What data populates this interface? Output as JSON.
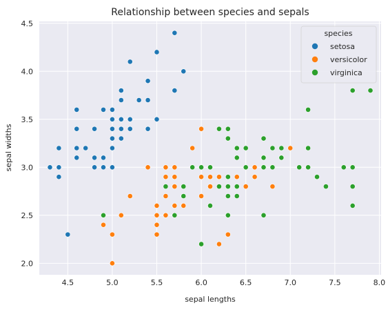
{
  "chart_data": {
    "type": "scatter",
    "title": "Relationship between species and sepals",
    "xlabel": "sepal lengths",
    "ylabel": "sepal widths",
    "xlim": [
      4.18,
      8.02
    ],
    "ylim": [
      1.88,
      4.52
    ],
    "xticks": [
      4.5,
      5.0,
      5.5,
      6.0,
      6.5,
      7.0,
      7.5,
      8.0
    ],
    "xtick_labels": [
      "4.5",
      "5.0",
      "5.5",
      "6.0",
      "6.5",
      "7.0",
      "7.5",
      "8.0"
    ],
    "yticks": [
      2.0,
      2.5,
      3.0,
      3.5,
      4.0,
      4.5
    ],
    "ytick_labels": [
      "2.0",
      "2.5",
      "3.0",
      "3.5",
      "4.0",
      "4.5"
    ],
    "grid": true,
    "legend": {
      "title": "species",
      "placement": "top-right"
    },
    "series": [
      {
        "name": "setosa",
        "color": "#1f77b4",
        "points": [
          [
            5.1,
            3.5
          ],
          [
            4.9,
            3.0
          ],
          [
            4.7,
            3.2
          ],
          [
            4.6,
            3.1
          ],
          [
            5.0,
            3.6
          ],
          [
            5.4,
            3.9
          ],
          [
            4.6,
            3.4
          ],
          [
            5.0,
            3.4
          ],
          [
            4.4,
            2.9
          ],
          [
            4.9,
            3.1
          ],
          [
            5.4,
            3.7
          ],
          [
            4.8,
            3.4
          ],
          [
            4.8,
            3.0
          ],
          [
            4.3,
            3.0
          ],
          [
            5.8,
            4.0
          ],
          [
            5.7,
            4.4
          ],
          [
            5.4,
            3.9
          ],
          [
            5.1,
            3.5
          ],
          [
            5.7,
            3.8
          ],
          [
            5.1,
            3.8
          ],
          [
            5.4,
            3.4
          ],
          [
            5.1,
            3.7
          ],
          [
            4.6,
            3.6
          ],
          [
            5.1,
            3.3
          ],
          [
            4.8,
            3.4
          ],
          [
            5.0,
            3.0
          ],
          [
            5.0,
            3.4
          ],
          [
            5.2,
            3.5
          ],
          [
            5.2,
            3.4
          ],
          [
            4.7,
            3.2
          ],
          [
            4.8,
            3.1
          ],
          [
            5.4,
            3.4
          ],
          [
            5.2,
            4.1
          ],
          [
            5.5,
            4.2
          ],
          [
            4.9,
            3.1
          ],
          [
            5.0,
            3.2
          ],
          [
            5.5,
            3.5
          ],
          [
            4.9,
            3.6
          ],
          [
            4.4,
            3.0
          ],
          [
            5.1,
            3.4
          ],
          [
            5.0,
            3.5
          ],
          [
            4.5,
            2.3
          ],
          [
            4.4,
            3.2
          ],
          [
            5.0,
            3.5
          ],
          [
            5.1,
            3.8
          ],
          [
            4.8,
            3.0
          ],
          [
            5.1,
            3.8
          ],
          [
            4.6,
            3.2
          ],
          [
            5.3,
            3.7
          ],
          [
            5.0,
            3.3
          ]
        ]
      },
      {
        "name": "versicolor",
        "color": "#ff7f0e",
        "points": [
          [
            7.0,
            3.2
          ],
          [
            6.4,
            3.2
          ],
          [
            6.9,
            3.1
          ],
          [
            5.5,
            2.3
          ],
          [
            6.5,
            2.8
          ],
          [
            5.7,
            2.8
          ],
          [
            6.3,
            3.3
          ],
          [
            4.9,
            2.4
          ],
          [
            6.6,
            2.9
          ],
          [
            5.2,
            2.7
          ],
          [
            5.0,
            2.0
          ],
          [
            5.9,
            3.0
          ],
          [
            6.0,
            2.2
          ],
          [
            6.1,
            2.9
          ],
          [
            5.6,
            2.9
          ],
          [
            6.7,
            3.1
          ],
          [
            5.6,
            3.0
          ],
          [
            5.8,
            2.7
          ],
          [
            6.2,
            2.2
          ],
          [
            5.6,
            2.5
          ],
          [
            5.9,
            3.2
          ],
          [
            6.1,
            2.8
          ],
          [
            6.3,
            2.5
          ],
          [
            6.1,
            2.8
          ],
          [
            6.4,
            2.9
          ],
          [
            6.6,
            3.0
          ],
          [
            6.8,
            2.8
          ],
          [
            6.7,
            3.0
          ],
          [
            6.0,
            2.9
          ],
          [
            5.7,
            2.6
          ],
          [
            5.5,
            2.4
          ],
          [
            5.5,
            2.4
          ],
          [
            5.8,
            2.7
          ],
          [
            6.0,
            2.7
          ],
          [
            5.4,
            3.0
          ],
          [
            6.0,
            3.4
          ],
          [
            6.7,
            3.1
          ],
          [
            6.3,
            2.3
          ],
          [
            5.6,
            3.0
          ],
          [
            5.5,
            2.5
          ],
          [
            5.5,
            2.6
          ],
          [
            6.1,
            3.0
          ],
          [
            5.8,
            2.6
          ],
          [
            5.0,
            2.3
          ],
          [
            5.6,
            2.7
          ],
          [
            5.7,
            3.0
          ],
          [
            5.7,
            2.9
          ],
          [
            6.2,
            2.9
          ],
          [
            5.1,
            2.5
          ],
          [
            5.7,
            2.8
          ]
        ]
      },
      {
        "name": "virginica",
        "color": "#2ca02c",
        "points": [
          [
            6.3,
            3.3
          ],
          [
            5.8,
            2.7
          ],
          [
            7.1,
            3.0
          ],
          [
            6.3,
            2.9
          ],
          [
            6.5,
            3.0
          ],
          [
            7.6,
            3.0
          ],
          [
            4.9,
            2.5
          ],
          [
            7.3,
            2.9
          ],
          [
            6.7,
            2.5
          ],
          [
            7.2,
            3.6
          ],
          [
            6.5,
            3.2
          ],
          [
            6.4,
            2.7
          ],
          [
            6.8,
            3.0
          ],
          [
            5.7,
            2.5
          ],
          [
            5.8,
            2.8
          ],
          [
            6.4,
            3.2
          ],
          [
            6.5,
            3.0
          ],
          [
            7.7,
            3.8
          ],
          [
            7.7,
            2.6
          ],
          [
            6.0,
            2.2
          ],
          [
            6.9,
            3.2
          ],
          [
            5.6,
            2.8
          ],
          [
            7.7,
            2.8
          ],
          [
            6.3,
            2.7
          ],
          [
            6.7,
            3.3
          ],
          [
            7.2,
            3.2
          ],
          [
            6.2,
            2.8
          ],
          [
            6.1,
            3.0
          ],
          [
            6.4,
            2.8
          ],
          [
            7.2,
            3.0
          ],
          [
            7.4,
            2.8
          ],
          [
            7.9,
            3.8
          ],
          [
            6.4,
            2.8
          ],
          [
            6.3,
            2.8
          ],
          [
            6.1,
            2.6
          ],
          [
            7.7,
            3.0
          ],
          [
            6.3,
            3.4
          ],
          [
            6.4,
            3.1
          ],
          [
            6.0,
            3.0
          ],
          [
            6.9,
            3.1
          ],
          [
            6.7,
            3.1
          ],
          [
            6.9,
            3.1
          ],
          [
            5.8,
            2.7
          ],
          [
            6.8,
            3.2
          ],
          [
            6.7,
            3.3
          ],
          [
            6.7,
            3.0
          ],
          [
            6.3,
            2.5
          ],
          [
            6.5,
            3.0
          ],
          [
            6.2,
            3.4
          ],
          [
            5.9,
            3.0
          ]
        ]
      }
    ]
  }
}
